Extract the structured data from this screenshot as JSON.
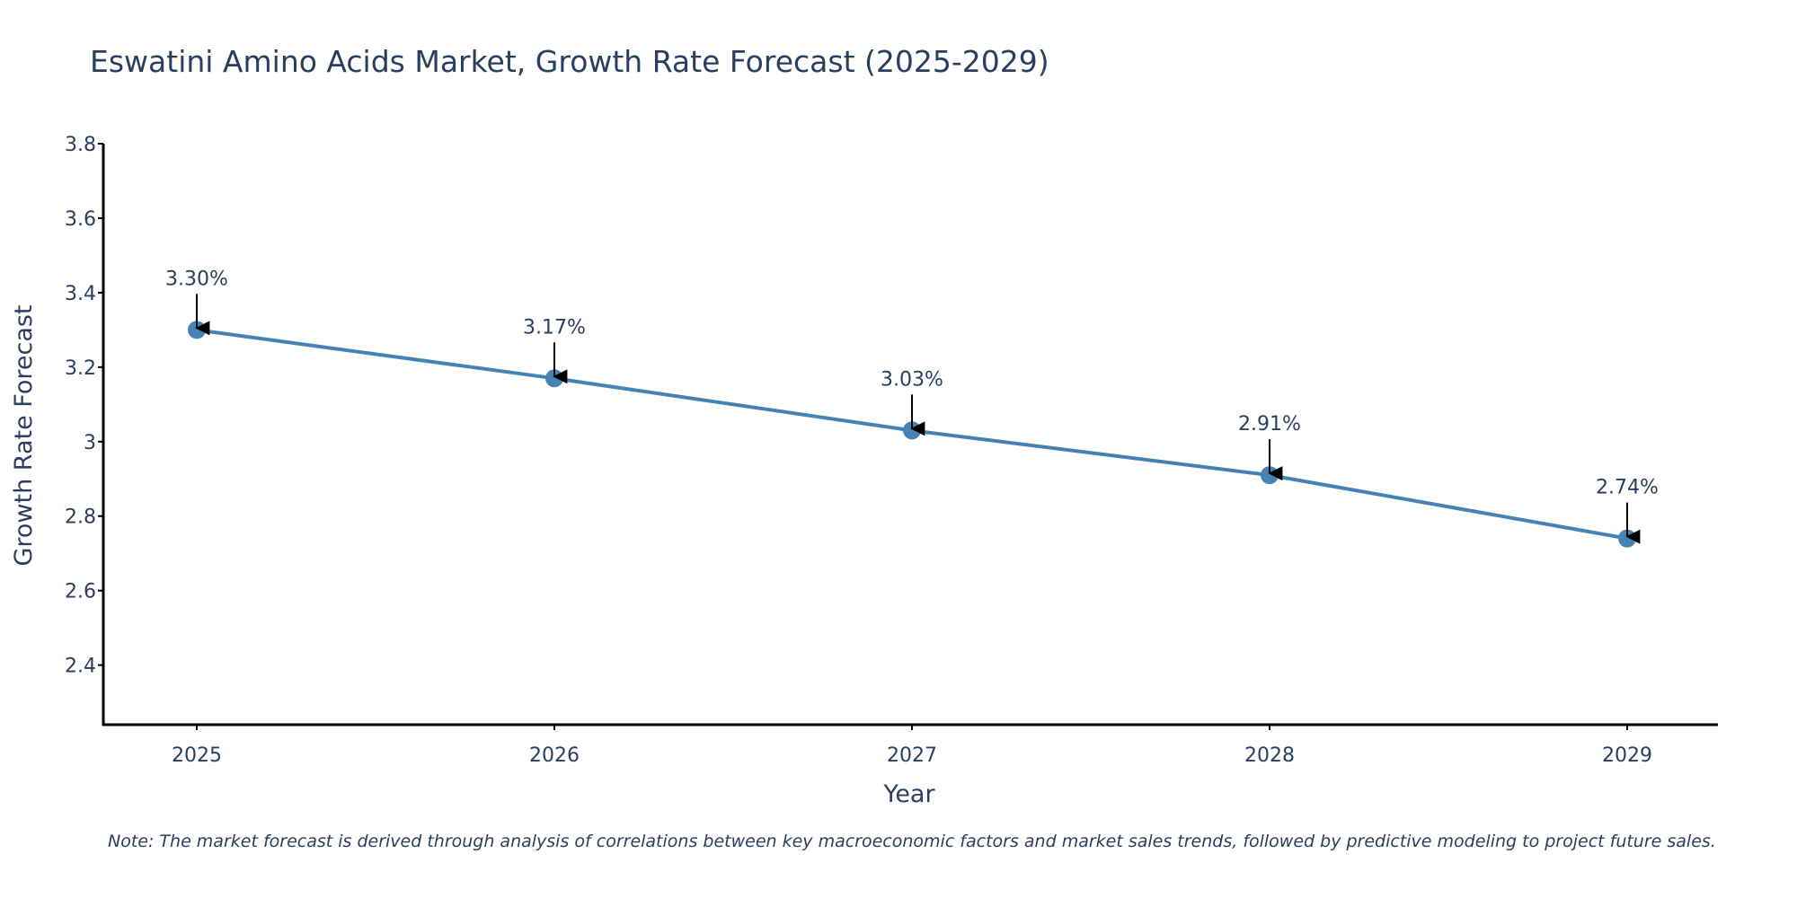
{
  "chart_data": {
    "type": "line",
    "title": "Eswatini Amino Acids Market, Growth Rate Forecast (2025-2029)",
    "xlabel": "Year",
    "ylabel": "Growth Rate Forecast",
    "categories": [
      "2025",
      "2026",
      "2027",
      "2028",
      "2029"
    ],
    "series": [
      {
        "name": "Growth Rate Forecast",
        "values": [
          3.3,
          3.17,
          3.03,
          2.91,
          2.74
        ],
        "data_labels": [
          "3.30%",
          "3.17%",
          "3.03%",
          "2.91%",
          "2.74%"
        ],
        "color": "#4682b4"
      }
    ],
    "ylim": [
      2.24,
      3.8
    ],
    "yticks": [
      2.4,
      2.6,
      2.8,
      3.0,
      3.2,
      3.4,
      3.6,
      3.8
    ],
    "ytick_labels": [
      "2.4",
      "2.6",
      "2.8",
      "3",
      "3.2",
      "3.4",
      "3.6",
      "3.8"
    ],
    "grid": false,
    "note": "Note: The market forecast is derived through analysis of correlations between key macroeconomic factors and market sales trends, followed by predictive modeling to project future sales."
  }
}
